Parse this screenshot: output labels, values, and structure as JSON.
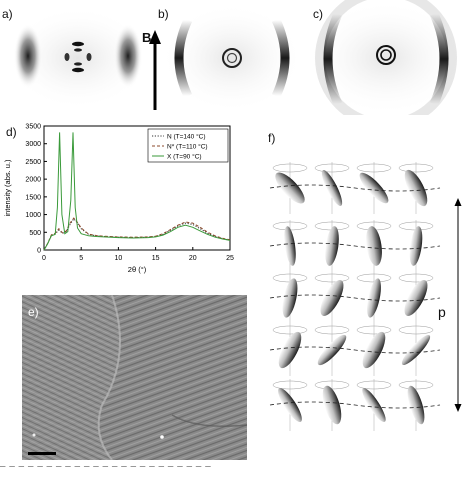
{
  "panels": {
    "a": "a)",
    "b": "b)",
    "c": "c)",
    "d": "d)",
    "e": "e)",
    "f": "f)"
  },
  "field_label": "B",
  "helix_label": "p",
  "colors": {
    "scatter_dark": "#1a1a1a",
    "n140": "#333333",
    "n110": "#8b4a2b",
    "x90": "#3a9a3a"
  },
  "chart_data": {
    "type": "line",
    "xlabel": "2θ (°)",
    "ylabel": "intensity (abs. u.)",
    "xlim": [
      0,
      25
    ],
    "ylim": [
      0,
      3500
    ],
    "xticks": [
      0,
      5,
      10,
      15,
      20,
      25
    ],
    "yticks": [
      0,
      500,
      1000,
      1500,
      2000,
      2500,
      3000,
      3500
    ],
    "legend_position": "top-right",
    "series": [
      {
        "name": "N (T=140 °C)",
        "style": "dotted",
        "x": [
          0,
          0.5,
          1,
          1.5,
          2,
          2.5,
          3,
          3.5,
          4,
          4.5,
          5,
          6,
          7,
          8,
          10,
          12,
          14,
          15,
          16,
          17,
          18,
          19,
          20,
          21,
          22,
          23,
          24,
          25
        ],
        "y": [
          0,
          180,
          420,
          460,
          560,
          470,
          520,
          720,
          880,
          760,
          600,
          440,
          400,
          380,
          360,
          350,
          360,
          380,
          440,
          560,
          680,
          760,
          720,
          600,
          470,
          380,
          320,
          280
        ]
      },
      {
        "name": "N* (T=110 °C)",
        "style": "dashed",
        "x": [
          0,
          0.5,
          1,
          1.5,
          2,
          2.5,
          3,
          3.5,
          4,
          4.5,
          5,
          6,
          7,
          8,
          10,
          12,
          14,
          15,
          16,
          17,
          18,
          19,
          20,
          21,
          22,
          23,
          24,
          25
        ],
        "y": [
          0,
          190,
          430,
          470,
          600,
          480,
          540,
          760,
          900,
          780,
          620,
          450,
          410,
          390,
          370,
          360,
          370,
          390,
          460,
          580,
          700,
          790,
          760,
          640,
          500,
          400,
          330,
          290
        ]
      },
      {
        "name": "X (T=90 °C)",
        "style": "solid",
        "x": [
          0,
          0.5,
          1,
          1.5,
          1.8,
          2.1,
          2.4,
          2.8,
          3.2,
          3.6,
          3.9,
          4.2,
          4.5,
          5,
          6,
          7,
          8,
          10,
          12,
          14,
          15,
          16,
          17,
          18,
          19,
          20,
          21,
          22,
          23,
          24,
          25
        ],
        "y": [
          0,
          180,
          400,
          440,
          1200,
          3320,
          1000,
          460,
          520,
          1400,
          3320,
          1200,
          620,
          460,
          400,
          380,
          370,
          350,
          340,
          350,
          370,
          420,
          520,
          640,
          700,
          640,
          540,
          440,
          360,
          310,
          270
        ]
      }
    ]
  }
}
